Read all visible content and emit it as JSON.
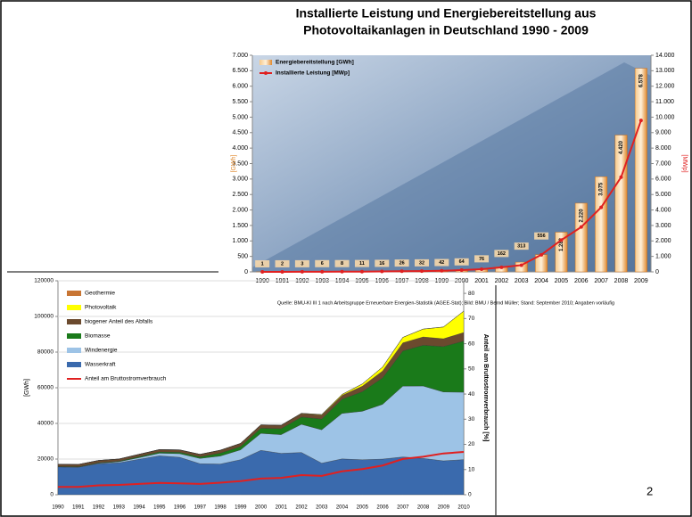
{
  "chart_data": [
    {
      "type": "bar",
      "title": [
        "Installierte Leistung und Energiebereitstellung aus",
        "Photovoltaikanlagen in Deutschland 1990 - 2009"
      ],
      "ylabel": "[GWh]",
      "y2label": "[MWp]",
      "source": "Quelle: BMU-KI III 1 nach Arbeitsgruppe Erneuerbare Energien-Statistik (AGEE-Stat); Bild: BMU / Bernd Müller; Stand: September 2010; Angaben vorläufig",
      "categories": [
        "1990",
        "1991",
        "1992",
        "1993",
        "1994",
        "1995",
        "1996",
        "1997",
        "1998",
        "1999",
        "2000",
        "2001",
        "2002",
        "2003",
        "2004",
        "2005",
        "2006",
        "2007",
        "2008",
        "2009"
      ],
      "series": [
        {
          "name": "Energiebereitstellung [GWh]",
          "color": "#f0a040",
          "values": [
            1,
            2,
            3,
            6,
            8,
            11,
            16,
            26,
            32,
            42,
            64,
            76,
            162,
            313,
            556,
            1282,
            2220,
            3075,
            4420,
            6578
          ],
          "value_labels": [
            "1",
            "2",
            "3",
            "6",
            "8",
            "11",
            "16",
            "26",
            "32",
            "42",
            "64",
            "76",
            "162",
            "313",
            "556",
            "1.282",
            "2.220",
            "3.075",
            "4.420",
            "6.578"
          ]
        },
        {
          "name": "Installierte Leistung [MWp]",
          "color": "#e02020",
          "axis": "y2",
          "values": [
            2,
            3,
            5,
            9,
            12,
            18,
            28,
            42,
            54,
            70,
            114,
            176,
            296,
            435,
            1105,
            2056,
            2899,
            4170,
            6120,
            9785
          ]
        }
      ],
      "ylim": [
        0,
        7000
      ],
      "yticks": [
        0,
        {
          "value": 500,
          "label": "500"
        },
        {
          "value": 1000,
          "label": "1.000"
        },
        {
          "value": 1500,
          "label": "1.500"
        },
        {
          "value": 2000,
          "label": "2.000"
        },
        {
          "value": 2500,
          "label": "2.500"
        },
        {
          "value": 3000,
          "label": "3.000"
        },
        {
          "value": 3500,
          "label": "3.500"
        },
        {
          "value": 4000,
          "label": "4.000"
        },
        {
          "value": 4500,
          "label": "4.500"
        },
        {
          "value": 5000,
          "label": "5.000"
        },
        {
          "value": 5500,
          "label": "5.500"
        },
        {
          "value": 6000,
          "label": "6.000"
        },
        {
          "value": 6500,
          "label": "6.500"
        },
        {
          "value": 7000,
          "label": "7.000"
        }
      ],
      "y2lim": [
        0,
        14000
      ],
      "y2ticks": [
        0,
        {
          "value": 1000,
          "label": "1.000"
        },
        {
          "value": 2000,
          "label": "2.000"
        },
        {
          "value": 3000,
          "label": "3.000"
        },
        {
          "value": 4000,
          "label": "4.000"
        },
        {
          "value": 5000,
          "label": "5.000"
        },
        {
          "value": 6000,
          "label": "6.000"
        },
        {
          "value": 7000,
          "label": "7.000"
        },
        {
          "value": 8000,
          "label": "8.000"
        },
        {
          "value": 9000,
          "label": "9.000"
        },
        {
          "value": 10000,
          "label": "10.000"
        },
        {
          "value": 11000,
          "label": "11.000"
        },
        {
          "value": 12000,
          "label": "12.000"
        },
        {
          "value": 13000,
          "label": "13.000"
        },
        {
          "value": 14000,
          "label": "14.000"
        }
      ],
      "legend": "upper left"
    },
    {
      "type": "area",
      "ylabel": "[GWh]",
      "y2label": "Anteil am Bruttostromverbrauch [%]",
      "categories": [
        "1990",
        "1991",
        "1992",
        "1993",
        "1994",
        "1995",
        "1996",
        "1997",
        "1998",
        "1999",
        "2000",
        "2001",
        "2002",
        "2003",
        "2004",
        "2005",
        "2006",
        "2007",
        "2008",
        "2009",
        "2010"
      ],
      "series": [
        {
          "name": "Wasserkraft",
          "color": "#3a6aad",
          "values": [
            15580,
            15400,
            17400,
            17900,
            19900,
            21800,
            21000,
            17400,
            17200,
            19650,
            24900,
            23200,
            23700,
            17700,
            20100,
            19600,
            20000,
            21200,
            20400,
            19000,
            19700
          ]
        },
        {
          "name": "Windenergie",
          "color": "#9dc3e6",
          "values": [
            71,
            100,
            275,
            600,
            909,
            1500,
            2032,
            2966,
            4489,
            5528,
            9513,
            10509,
            15786,
            18713,
            25509,
            27229,
            30710,
            39713,
            40574,
            38639,
            37793
          ]
        },
        {
          "name": "Biomasse",
          "color": "#1a7a1a",
          "values": [
            221,
            260,
            296,
            320,
            570,
            670,
            760,
            880,
            1640,
            1850,
            2890,
            3350,
            4090,
            6080,
            7960,
            10980,
            14840,
            19760,
            22870,
            25500,
            28700
          ]
        },
        {
          "name": "biogener Anteil des Abfalls",
          "color": "#6b4a2e",
          "values": [
            1213,
            1211,
            1262,
            1203,
            1306,
            1348,
            1343,
            1397,
            1618,
            1740,
            1844,
            1859,
            1949,
            2161,
            2117,
            3047,
            3844,
            4521,
            4659,
            4352,
            4781
          ]
        },
        {
          "name": "Photovoltaik",
          "color": "#ffff00",
          "values": [
            1,
            2,
            3,
            6,
            8,
            11,
            16,
            26,
            32,
            42,
            64,
            76,
            162,
            313,
            556,
            1282,
            2220,
            3075,
            4420,
            6578,
            12000
          ]
        },
        {
          "name": "Geothermie",
          "color": "#c87533",
          "values": [
            0,
            0,
            0,
            0,
            0,
            0,
            0,
            0,
            0,
            0,
            0,
            0,
            0,
            0,
            0,
            0,
            0,
            0,
            18,
            19,
            28
          ]
        },
        {
          "name": "Anteil am Bruttostromverbrauch",
          "color": "#e02020",
          "axis": "y2",
          "values": [
            3.1,
            3.1,
            3.7,
            3.9,
            4.3,
            4.7,
            4.5,
            4.3,
            4.8,
            5.4,
            6.4,
            6.7,
            7.8,
            7.5,
            9.3,
            10.2,
            11.6,
            14.2,
            15.1,
            16.4,
            17.0
          ]
        }
      ],
      "ylim": [
        0,
        120000
      ],
      "yticks": [
        0,
        20000,
        40000,
        60000,
        80000,
        100000,
        120000
      ],
      "y2lim": [
        0,
        85
      ],
      "y2ticks": [
        0,
        10,
        20,
        30,
        40,
        50,
        60,
        70,
        80
      ],
      "legend": "upper left"
    }
  ],
  "slide_number": "2"
}
